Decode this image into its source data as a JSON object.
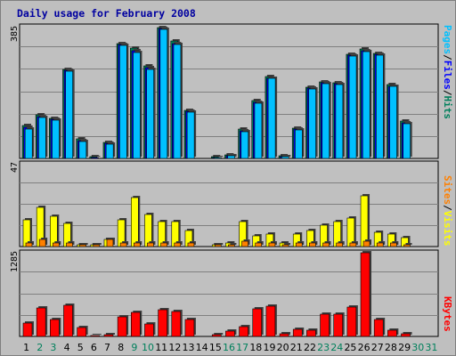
{
  "chart_data": {
    "title": "Daily usage for February 2008",
    "type": "bar",
    "x": [
      "1",
      "2",
      "3",
      "4",
      "5",
      "6",
      "7",
      "8",
      "9",
      "10",
      "11",
      "12",
      "13",
      "14",
      "15",
      "16",
      "17",
      "18",
      "19",
      "20",
      "21",
      "22",
      "23",
      "24",
      "25",
      "26",
      "27",
      "28",
      "29",
      "30",
      "31"
    ],
    "weekend_days": [
      "2",
      "3",
      "9",
      "10",
      "16",
      "17",
      "23",
      "24",
      "30",
      "31"
    ],
    "panels": [
      {
        "name": "hits-files-pages",
        "max_label": "385",
        "ylim": [
          0,
          385
        ],
        "right_labels": [
          "Pages",
          "Files",
          "Hits"
        ],
        "series": [
          {
            "name": "Hits",
            "color": "#00805c",
            "values": [
              97,
              128,
              116,
              260,
              56,
              4,
              46,
              336,
              322,
              270,
              383,
              343,
              140,
              0,
              4,
              10,
              86,
              170,
              239,
              8,
              88,
              208,
              225,
              222,
              304,
              321,
              308,
              216,
              108,
              0,
              0
            ]
          },
          {
            "name": "Files",
            "color": "#0000ff",
            "values": [
              91,
              123,
              114,
              258,
              53,
              2,
              43,
              332,
              315,
              265,
              380,
              336,
              137,
              0,
              3,
              8,
              81,
              163,
              234,
              6,
              85,
              205,
              221,
              219,
              302,
              316,
              304,
              212,
              104,
              0,
              0
            ]
          },
          {
            "name": "Pages",
            "color": "#00c0ff",
            "values": [
              87,
              120,
              112,
              256,
              50,
              1,
              41,
              331,
              310,
              261,
              378,
              333,
              136,
              0,
              2,
              7,
              79,
              160,
              233,
              5,
              82,
              203,
              219,
              217,
              300,
              312,
              302,
              210,
              101,
              0,
              0
            ]
          }
        ]
      },
      {
        "name": "visits-sites",
        "max_label": "47",
        "ylim": [
          0,
          47
        ],
        "right_labels": [
          "Sites",
          "Visits"
        ],
        "series": [
          {
            "name": "Visits",
            "color": "#ffff00",
            "values": [
              15,
              22,
              17,
              13,
              1,
              1,
              4,
              15,
              28,
              18,
              14,
              14,
              9,
              0,
              1,
              2,
              14,
              6,
              7,
              2,
              7,
              9,
              12,
              14,
              16,
              29,
              8,
              7,
              5,
              0,
              0
            ]
          },
          {
            "name": "Sites",
            "color": "#ff8000",
            "values": [
              2,
              4,
              2,
              2,
              1,
              1,
              4,
              2,
              2,
              2,
              2,
              2,
              2,
              0,
              1,
              1,
              3,
              2,
              2,
              1,
              2,
              2,
              2,
              2,
              2,
              3,
              2,
              2,
              1,
              0,
              0
            ]
          }
        ]
      },
      {
        "name": "kbytes",
        "max_label": "1285",
        "ylim": [
          0,
          1285
        ],
        "right_labels": [
          "KBytes"
        ],
        "series": [
          {
            "name": "KBytes",
            "color": "#ff0000",
            "values": [
              205,
              440,
              262,
              485,
              130,
              10,
              30,
              302,
              375,
              190,
              405,
              380,
              260,
              0,
              30,
              85,
              150,
              425,
              465,
              40,
              115,
              90,
              345,
              345,
              455,
              1285,
              255,
              90,
              40,
              0,
              0
            ]
          }
        ]
      }
    ]
  },
  "colors": {
    "background": "#bfbfbf",
    "plot_background": "#c0c0c0",
    "gridline": "#808080",
    "title": "#0000a0",
    "weekday_label": "#000000",
    "weekend_label": "#00805c"
  }
}
